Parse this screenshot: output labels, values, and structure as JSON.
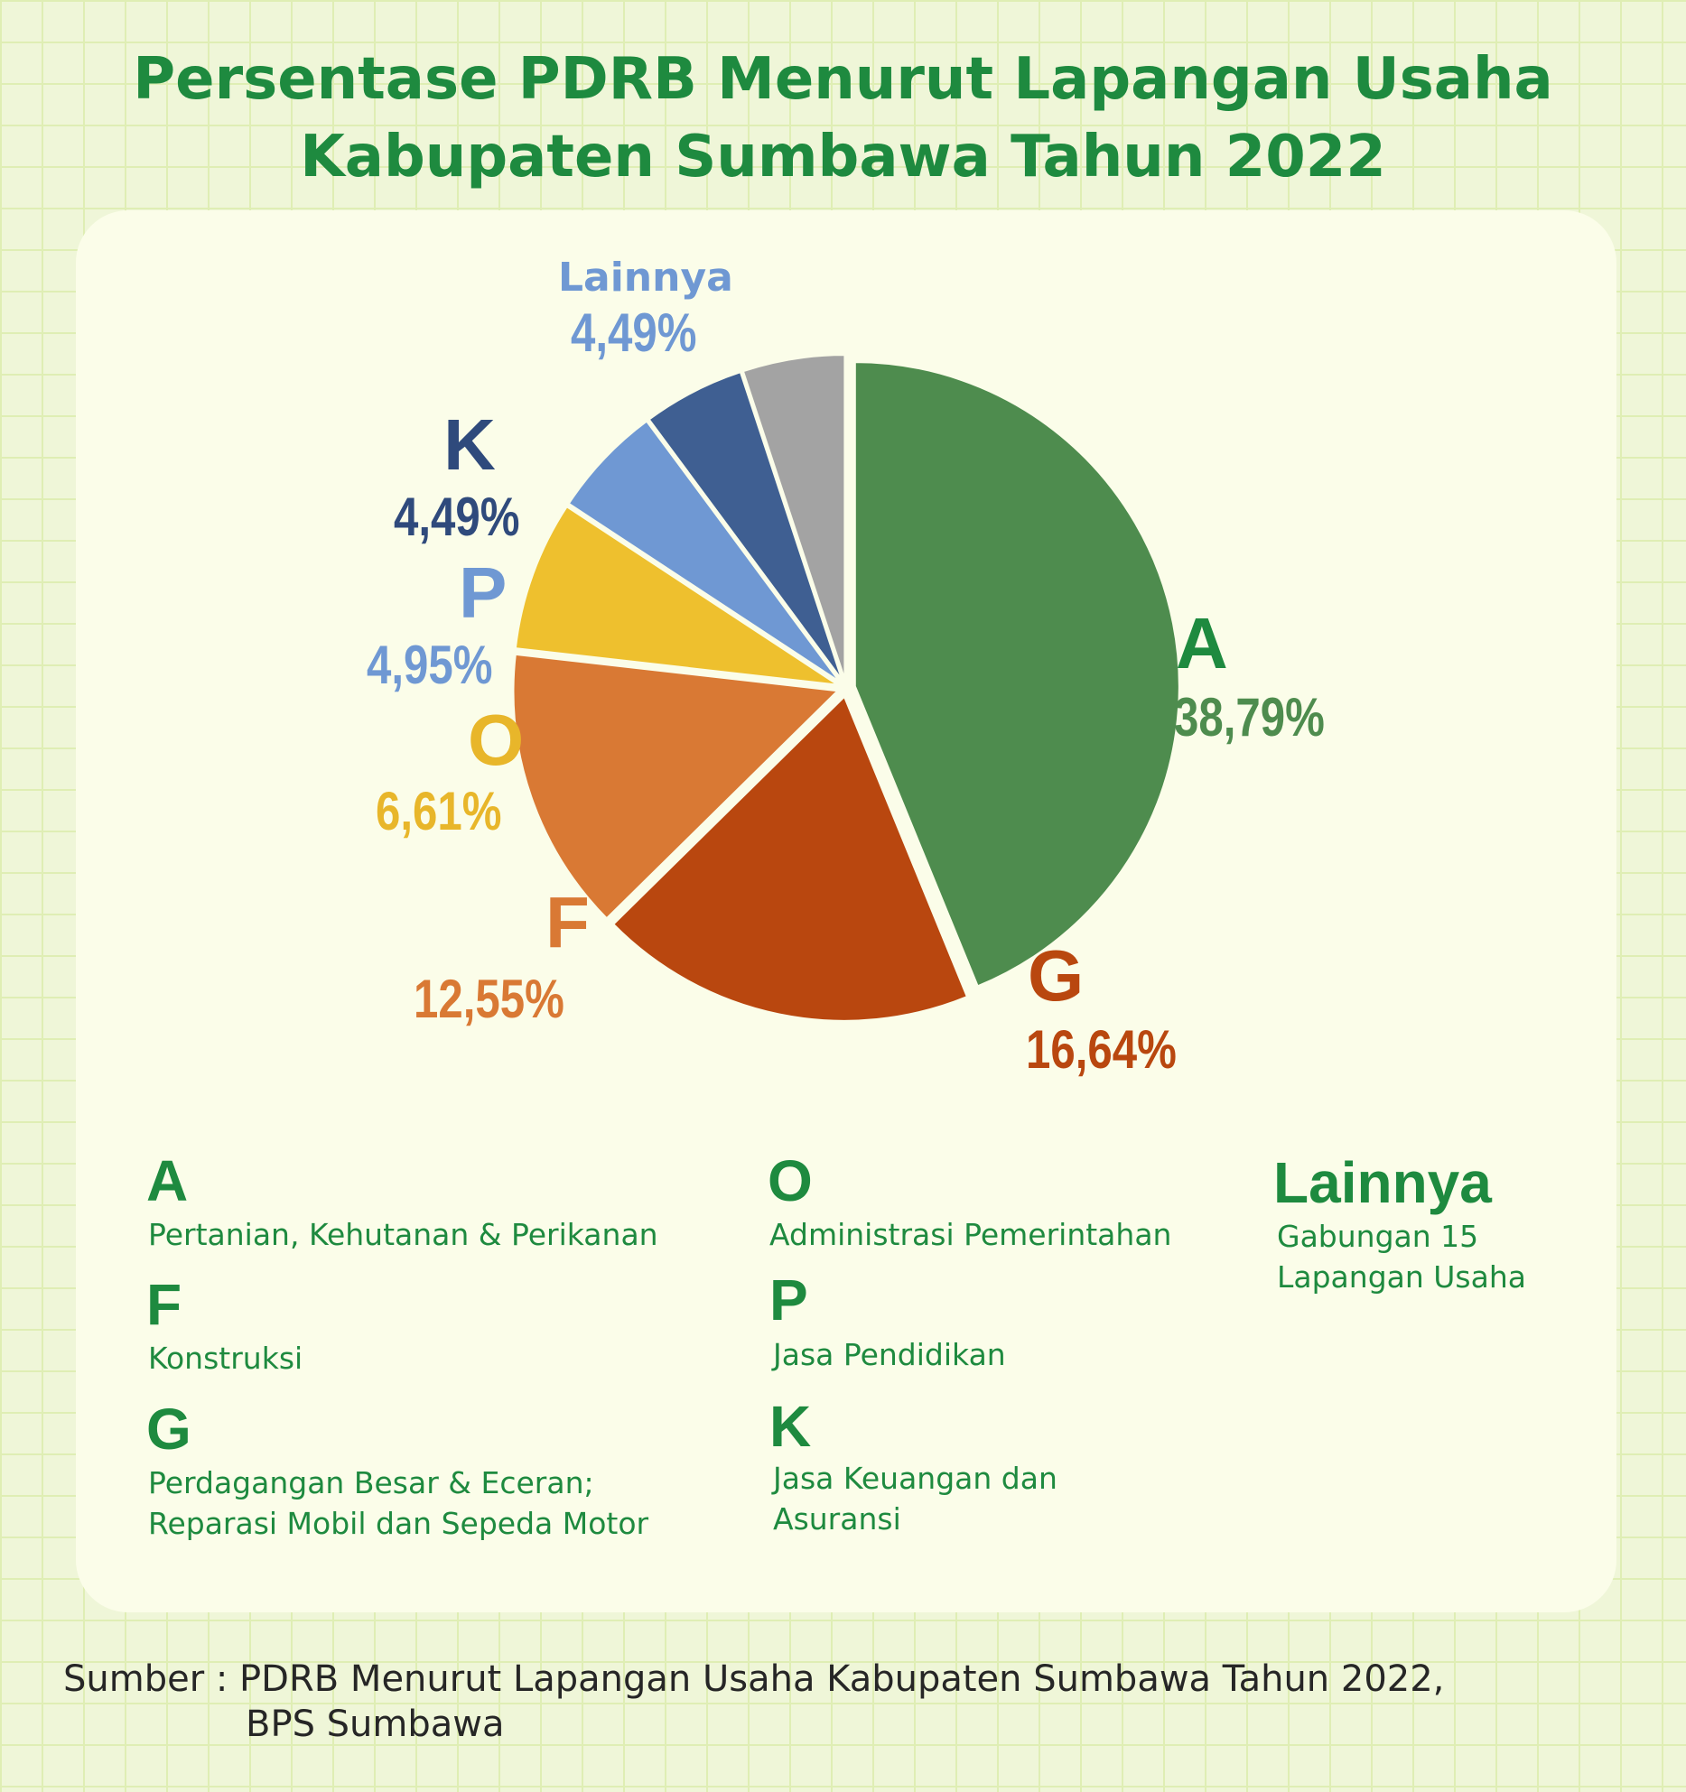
{
  "title_line1": "Persentase PDRB Menurut Lapangan Usaha",
  "title_line2": "Kabupaten Sumbawa Tahun 2022",
  "chart_data": {
    "type": "pie",
    "title": "Persentase PDRB Menurut Lapangan Usaha Kabupaten Sumbawa Tahun 2022",
    "slices": [
      {
        "code": "A",
        "value": 38.79,
        "label": "38,79%",
        "color": "#4e8c4e"
      },
      {
        "code": "G",
        "value": 16.64,
        "label": "16,64%",
        "color": "#b9470f"
      },
      {
        "code": "F",
        "value": 12.55,
        "label": "12,55%",
        "color": "#d97934"
      },
      {
        "code": "O",
        "value": 6.61,
        "label": "6,61%",
        "color": "#eec02e"
      },
      {
        "code": "P",
        "value": 4.95,
        "label": "4,95%",
        "color": "#6f98d3"
      },
      {
        "code": "K",
        "value": 4.49,
        "label": "4,49%",
        "color": "#3f5f92"
      },
      {
        "code": "Lainnya",
        "value": 4.49,
        "label": "4,49%",
        "color": "#a3a3a3"
      }
    ]
  },
  "legend": {
    "A": {
      "code": "A",
      "desc": [
        "Pertanian, Kehutanan & Perikanan"
      ]
    },
    "F": {
      "code": "F",
      "desc": [
        "Konstruksi"
      ]
    },
    "G": {
      "code": "G",
      "desc": [
        "Perdagangan Besar & Eceran;",
        "Reparasi Mobil dan Sepeda Motor"
      ]
    },
    "O": {
      "code": "O",
      "desc": [
        "Administrasi Pemerintahan"
      ]
    },
    "P": {
      "code": "P",
      "desc": [
        "Jasa Pendidikan"
      ]
    },
    "K": {
      "code": "K",
      "desc": [
        "Jasa Keuangan dan",
        "Asuransi"
      ]
    },
    "Lainnya": {
      "code": "Lainnya",
      "desc": [
        "Gabungan 15",
        "Lapangan Usaha"
      ]
    }
  },
  "source": {
    "line1": "Sumber : PDRB Menurut Lapangan Usaha Kabupaten Sumbawa Tahun 2022,",
    "line2": "BPS Sumbawa"
  }
}
